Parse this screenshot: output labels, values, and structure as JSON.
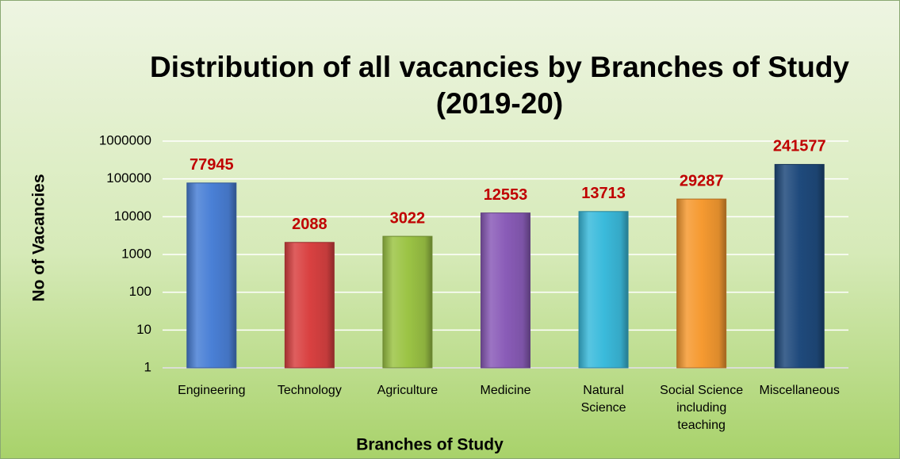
{
  "chart_data": {
    "type": "bar",
    "title": "Distribution of all vacancies by Branches of Study (2019-20)",
    "x_label": "Branches of Study",
    "y_label": "No of Vacancies",
    "categories": [
      "Engineering",
      "Technology",
      "Agriculture",
      "Medicine",
      "Natural Science",
      "Social Science including teaching",
      "Miscellaneous"
    ],
    "values": [
      77945,
      2088,
      3022,
      12553,
      13713,
      29287,
      241577
    ],
    "colors": [
      "#4a80d6",
      "#d94141",
      "#9cc445",
      "#8a5cb8",
      "#3bbbdc",
      "#f69a31",
      "#1f4a7c"
    ],
    "ylim": [
      1,
      1000000
    ],
    "yticks": [
      1,
      10,
      100,
      1000,
      10000,
      100000,
      1000000
    ],
    "log_scale": true,
    "grid": true
  }
}
